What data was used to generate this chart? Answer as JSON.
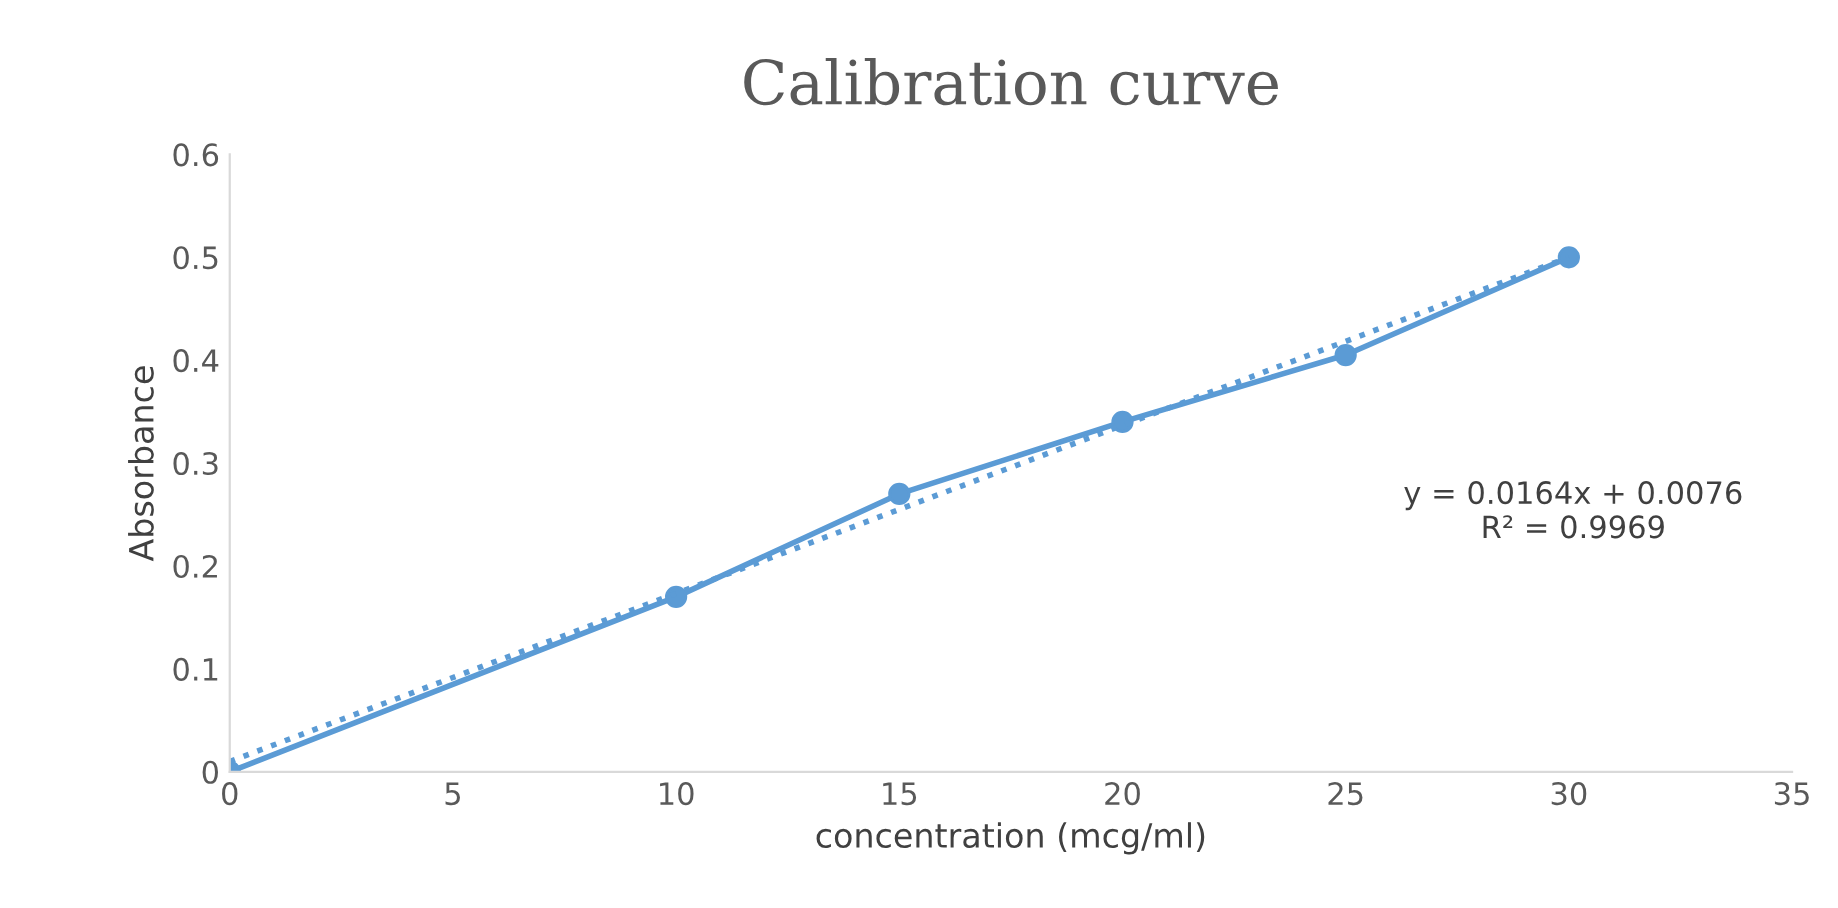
{
  "chart_data": {
    "type": "line",
    "title": "Calibration curve",
    "xlabel": "concentration (mcg/ml)",
    "ylabel": "Absorbance",
    "x": [
      0,
      10,
      15,
      20,
      25,
      30
    ],
    "series": [
      {
        "color": "#5b9bd5",
        "values": [
          0,
          0.17,
          0.27,
          0.34,
          0.405,
          0.5
        ],
        "marker": "circle",
        "line_style": "solid"
      },
      {
        "type": "line",
        "color": "#5b9bd5",
        "x": [
          0,
          30
        ],
        "values": [
          0.01,
          0.5
        ],
        "marker": "none",
        "line_style": "dotted"
      }
    ],
    "annotations": [
      "y = 0.0164x + 0.0076\nR² = 0.9969"
    ],
    "xlim": [
      0,
      35
    ],
    "xticks": [
      0,
      5,
      10,
      15,
      20,
      25,
      30,
      35
    ],
    "ylim": [
      0,
      0.6
    ],
    "yticks": [
      0,
      0.1,
      0.2,
      0.3,
      0.4,
      0.5,
      0.6
    ],
    "grid": false,
    "legend": false
  }
}
